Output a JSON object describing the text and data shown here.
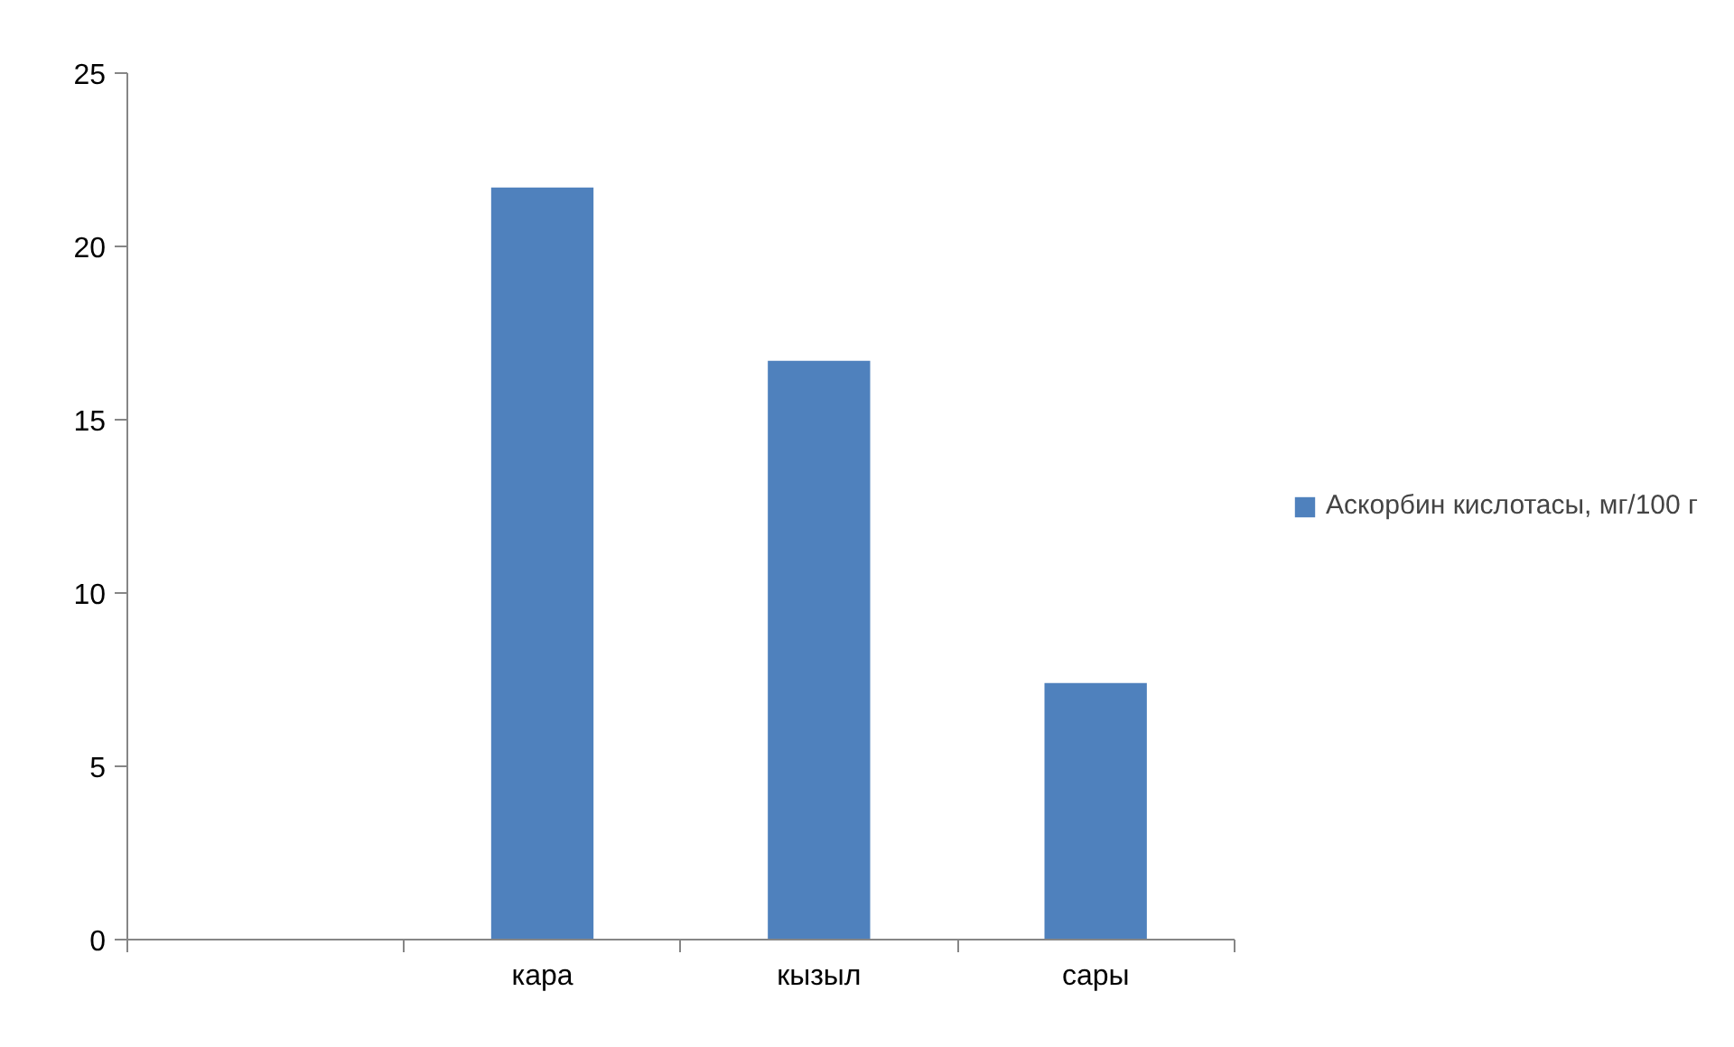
{
  "chart_data": {
    "type": "bar",
    "categories": [
      null,
      "кара",
      "кызыл",
      "сары"
    ],
    "series": [
      {
        "name": "Аскорбин кислотасы, мг/100 г",
        "color": "#4f81bd",
        "values": [
          null,
          21.7,
          16.7,
          7.4
        ]
      }
    ],
    "ylim": [
      0,
      25
    ],
    "yticks": [
      0,
      5,
      10,
      15,
      20,
      25
    ],
    "grid": false,
    "legend": "right"
  }
}
